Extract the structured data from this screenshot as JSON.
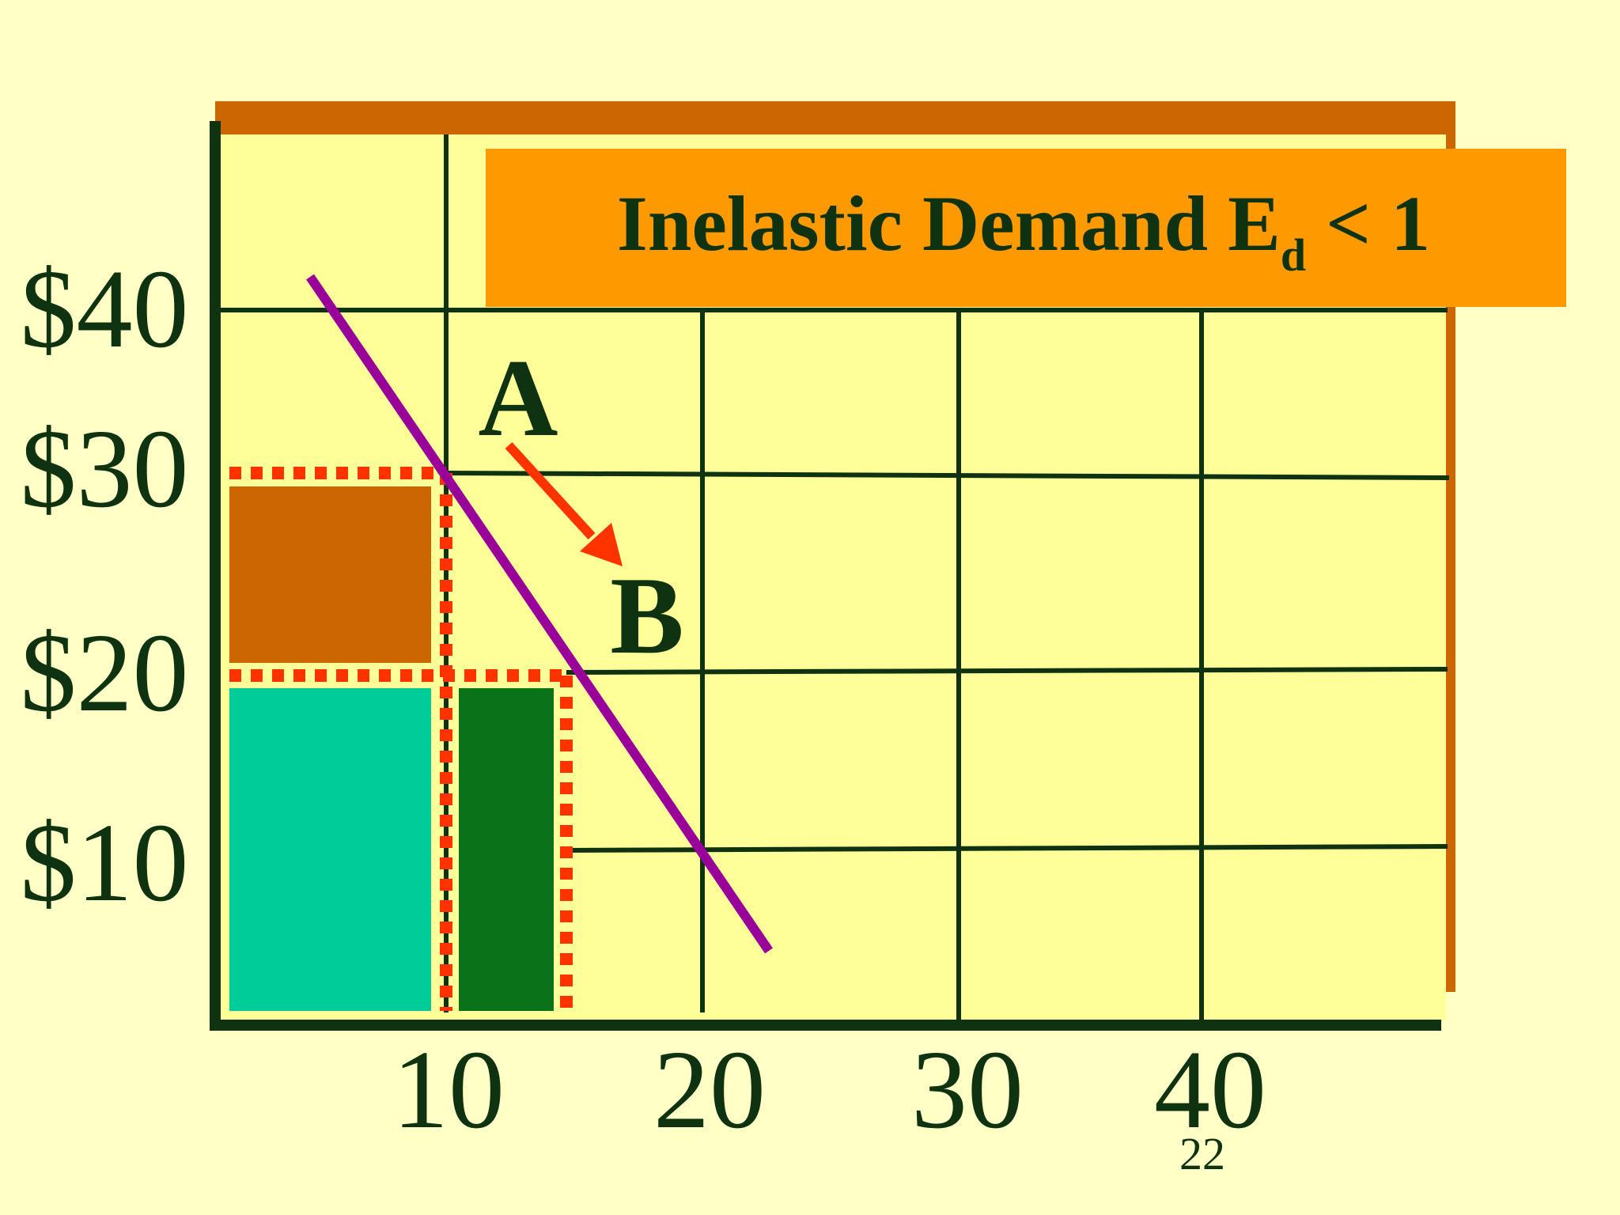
{
  "slide": {
    "title_main": "Inelastic Demand E",
    "title_sub": "d",
    "title_rest": " < 1",
    "page_number": "22"
  },
  "y_axis": {
    "ticks": [
      {
        "value": 40,
        "label": "$40"
      },
      {
        "value": 30,
        "label": "$30"
      },
      {
        "value": 20,
        "label": "$20"
      },
      {
        "value": 10,
        "label": "$10"
      }
    ]
  },
  "x_axis": {
    "ticks": [
      {
        "value": 10,
        "label": "10"
      },
      {
        "value": 20,
        "label": "20"
      },
      {
        "value": 30,
        "label": "30"
      },
      {
        "value": 40,
        "label": "40"
      }
    ]
  },
  "points": {
    "a_label": "A",
    "b_label": "B"
  },
  "colors": {
    "background": "#ffffc6",
    "plot_fill": "#ffff99",
    "plot_shadow": "#cc6600",
    "grid": "#0f3311",
    "axis": "#0f3311",
    "text": "#0f3311",
    "title_box": "#ff9900",
    "demand_line": "#990099",
    "arrow": "#ff3300",
    "dotted": "#ff3300",
    "lost_revenue": "#cc6600",
    "kept_revenue": "#00cc99",
    "gained_revenue": "#0a7319"
  },
  "icons": {
    "arrow": "arrow-down-right-icon"
  }
}
